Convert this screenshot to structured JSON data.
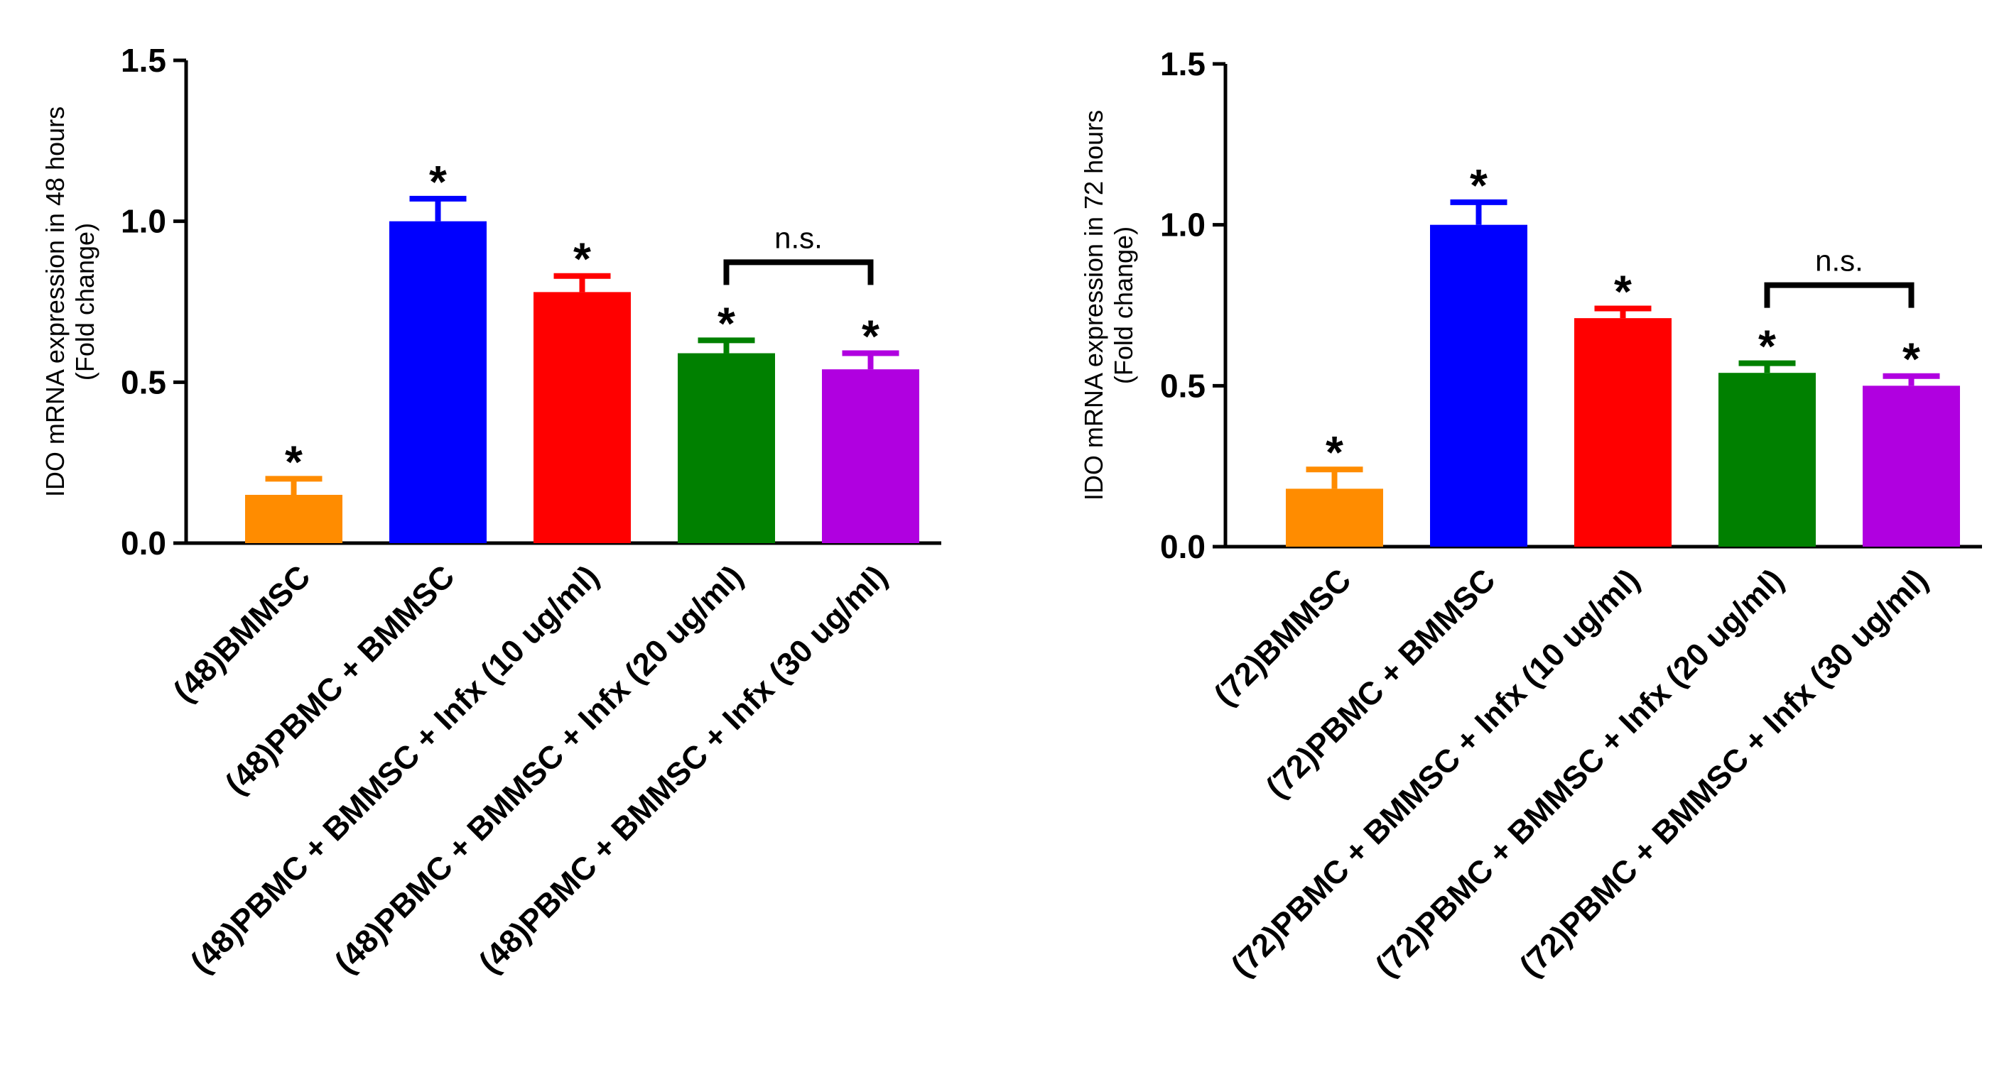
{
  "chart_data": [
    {
      "type": "bar",
      "ylabel_line1": "IDO mRNA expression in 48 hours",
      "ylabel_line2": "(Fold change)",
      "ylim": [
        0,
        1.5
      ],
      "yticks": [
        "0.0",
        "0.5",
        "1.0",
        "1.5"
      ],
      "categories": [
        "(48)BMMSC",
        "(48)PBMC + BMMSC",
        "(48)PBMC + BMMSC + Infx (10 ug/ml)",
        "(48)PBMC + BMMSC + Infx (20 ug/ml)",
        "(48)PBMC + BMMSC + Infx (30 ug/ml)"
      ],
      "values": [
        0.15,
        1.0,
        0.78,
        0.59,
        0.54
      ],
      "errors": [
        0.05,
        0.07,
        0.05,
        0.04,
        0.05
      ],
      "colors": [
        "#ff8c00",
        "#0000ff",
        "#ff0000",
        "#008000",
        "#b000e0"
      ],
      "significance": [
        "*",
        "*",
        "*",
        "*",
        "*"
      ],
      "bracket": {
        "from": 3,
        "to": 4,
        "label": "n.s."
      }
    },
    {
      "type": "bar",
      "ylabel_line1": "IDO mRNA expression in 72 hours",
      "ylabel_line2": "(Fold change)",
      "ylim": [
        0,
        1.5
      ],
      "yticks": [
        "0.0",
        "0.5",
        "1.0",
        "1.5"
      ],
      "categories": [
        "(72)BMMSC",
        "(72)PBMC + BMMSC",
        "(72)PBMC + BMMSC + Infx (10 ug/ml)",
        "(72)PBMC + BMMSC + Infx (20 ug/ml)",
        "(72)PBMC + BMMSC + Infx (30 ug/ml)"
      ],
      "values": [
        0.18,
        1.0,
        0.71,
        0.54,
        0.5
      ],
      "errors": [
        0.06,
        0.07,
        0.03,
        0.03,
        0.03
      ],
      "colors": [
        "#ff8c00",
        "#0000ff",
        "#ff0000",
        "#008000",
        "#b000e0"
      ],
      "significance": [
        "*",
        "*",
        "*",
        "*",
        "*"
      ],
      "bracket": {
        "from": 3,
        "to": 4,
        "label": "n.s."
      }
    }
  ]
}
